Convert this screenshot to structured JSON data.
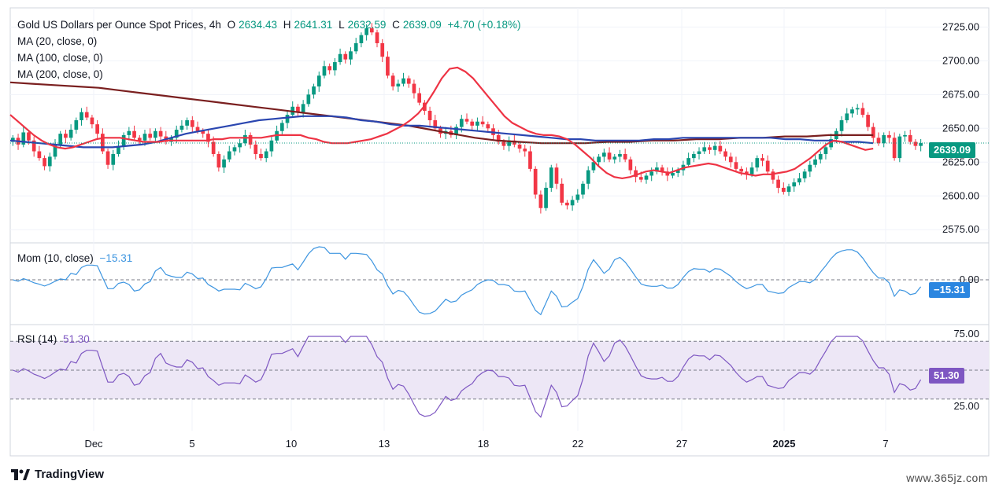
{
  "header": {
    "title": "Gold US Dollars per Ounce Spot Prices, 4h",
    "o_label": "O",
    "o_value": "2634.43",
    "h_label": "H",
    "h_value": "2641.31",
    "l_label": "L",
    "l_value": "2632.59",
    "c_label": "C",
    "c_value": "2639.09",
    "change": "+4.70 (+0.18%)",
    "ma_lines": [
      "MA (20, close, 0)",
      "MA (100, close, 0)",
      "MA (200, close, 0)"
    ]
  },
  "momentum": {
    "label": "Mom (10, close)",
    "value": "−15.31"
  },
  "rsi": {
    "label": "RSI (14)",
    "value": "51.30"
  },
  "branding": {
    "logo_text": "TradingView",
    "watermark": "www.365jz.com"
  },
  "colors": {
    "up": "#089981",
    "down": "#f23645",
    "ma20": "#ee3344",
    "ma100": "#2a46b0",
    "ma200": "#7a1f1f",
    "mom": "#3d95e0",
    "rsi": "#7e57c2",
    "rsi_band": "#ede7f6",
    "last_price": "#089981",
    "mom_tag": "#2b86e0",
    "rsi_tag": "#7e57c2"
  },
  "chart_data": [
    {
      "type": "candlestick",
      "title": "Gold US Dollars per Ounce Spot Prices, 4h",
      "x_tick_labels": [
        "Dec",
        "5",
        "10",
        "13",
        "18",
        "22",
        "27",
        "2025",
        "7"
      ],
      "y_tick_labels": [
        "2725.00",
        "2700.00",
        "2675.00",
        "2650.00",
        "2625.00",
        "2600.00",
        "2575.00"
      ],
      "ylim": [
        2567,
        2738
      ],
      "last_price": 2639.09,
      "last_price_label": "2639.09",
      "close": [
        2643,
        2638,
        2647,
        2641,
        2633,
        2628,
        2622,
        2629,
        2638,
        2646,
        2643,
        2649,
        2656,
        2662,
        2658,
        2653,
        2646,
        2633,
        2623,
        2631,
        2637,
        2645,
        2648,
        2643,
        2641,
        2646,
        2643,
        2648,
        2644,
        2640,
        2643,
        2649,
        2652,
        2656,
        2651,
        2648,
        2646,
        2640,
        2631,
        2621,
        2627,
        2633,
        2636,
        2639,
        2645,
        2638,
        2631,
        2628,
        2633,
        2641,
        2648,
        2654,
        2660,
        2666,
        2662,
        2668,
        2675,
        2681,
        2689,
        2696,
        2693,
        2699,
        2705,
        2701,
        2707,
        2713,
        2719,
        2724,
        2721,
        2713,
        2703,
        2689,
        2681,
        2683,
        2687,
        2683,
        2676,
        2669,
        2663,
        2656,
        2650,
        2646,
        2648,
        2645,
        2651,
        2657,
        2655,
        2652,
        2655,
        2653,
        2650,
        2645,
        2640,
        2637,
        2641,
        2638,
        2635,
        2633,
        2620,
        2601,
        2591,
        2606,
        2621,
        2609,
        2595,
        2593,
        2597,
        2601,
        2609,
        2619,
        2625,
        2629,
        2632,
        2627,
        2629,
        2631,
        2627,
        2619,
        2614,
        2612,
        2615,
        2618,
        2621,
        2618,
        2615,
        2617,
        2619,
        2623,
        2628,
        2631,
        2633,
        2636,
        2634,
        2637,
        2633,
        2629,
        2625,
        2620,
        2618,
        2616,
        2621,
        2628,
        2626,
        2618,
        2612,
        2606,
        2603,
        2607,
        2610,
        2613,
        2618,
        2623,
        2627,
        2631,
        2636,
        2642,
        2648,
        2656,
        2661,
        2664,
        2665,
        2660,
        2651,
        2643,
        2639,
        2645,
        2643,
        2628,
        2644,
        2645,
        2640,
        2637,
        2639.09
      ],
      "ma20": [
        2660,
        2655,
        2650,
        2645,
        2641,
        2638,
        2636,
        2635,
        2636,
        2638,
        2640,
        2642,
        2643,
        2643,
        2643,
        2642,
        2641,
        2640,
        2640,
        2640,
        2641,
        2641,
        2641,
        2641,
        2641,
        2641,
        2642,
        2642,
        2643,
        2643,
        2643,
        2643,
        2643,
        2644,
        2645,
        2645,
        2645,
        2645,
        2643,
        2642,
        2640,
        2639,
        2639,
        2639,
        2640,
        2641,
        2642,
        2644,
        2646,
        2649,
        2652,
        2656,
        2661,
        2668,
        2677,
        2687,
        2694,
        2695,
        2692,
        2687,
        2680,
        2673,
        2666,
        2659,
        2654,
        2651,
        2648,
        2646,
        2645,
        2645,
        2644,
        2642,
        2638,
        2633,
        2628,
        2622,
        2617,
        2614,
        2613,
        2614,
        2616,
        2618,
        2619,
        2618,
        2617,
        2619,
        2621,
        2622,
        2623,
        2624,
        2623,
        2621,
        2619,
        2617,
        2616,
        2615,
        2616,
        2616,
        2617,
        2618,
        2620,
        2624,
        2628,
        2633,
        2638,
        2641,
        2640,
        2638,
        2636,
        2634,
        2635
      ],
      "ma100": [
        2641,
        2640,
        2639,
        2638,
        2637,
        2636,
        2636,
        2636,
        2637,
        2638,
        2640,
        2643,
        2646,
        2648,
        2650,
        2652,
        2654,
        2656,
        2657,
        2658,
        2659,
        2659,
        2659,
        2658,
        2656,
        2655,
        2653,
        2652,
        2652,
        2651,
        2650,
        2649,
        2648,
        2647,
        2646,
        2645,
        2644,
        2643,
        2642,
        2642,
        2641,
        2641,
        2641,
        2641,
        2642,
        2642,
        2643,
        2643,
        2643,
        2643,
        2643,
        2643,
        2643,
        2642,
        2642,
        2641,
        2641,
        2640,
        2640,
        2639
      ],
      "ma200": [
        2684,
        2683,
        2682,
        2681,
        2680,
        2678,
        2676,
        2674,
        2672,
        2670,
        2668,
        2666,
        2664,
        2662,
        2660,
        2658,
        2656,
        2654,
        2652,
        2649,
        2646,
        2643,
        2641,
        2640,
        2639,
        2639,
        2639,
        2640,
        2640,
        2641,
        2641,
        2642,
        2642,
        2643,
        2643,
        2644,
        2644,
        2645,
        2645,
        2645
      ],
      "momentum_value": -15.31,
      "momentum_label": "−15.31",
      "momentum_tick_labels": [
        "0.00"
      ],
      "rsi_value": 51.3,
      "rsi_label": "51.30",
      "rsi_tick_labels": [
        "75.00",
        "25.00"
      ],
      "rsi_band": [
        30,
        70
      ]
    }
  ]
}
